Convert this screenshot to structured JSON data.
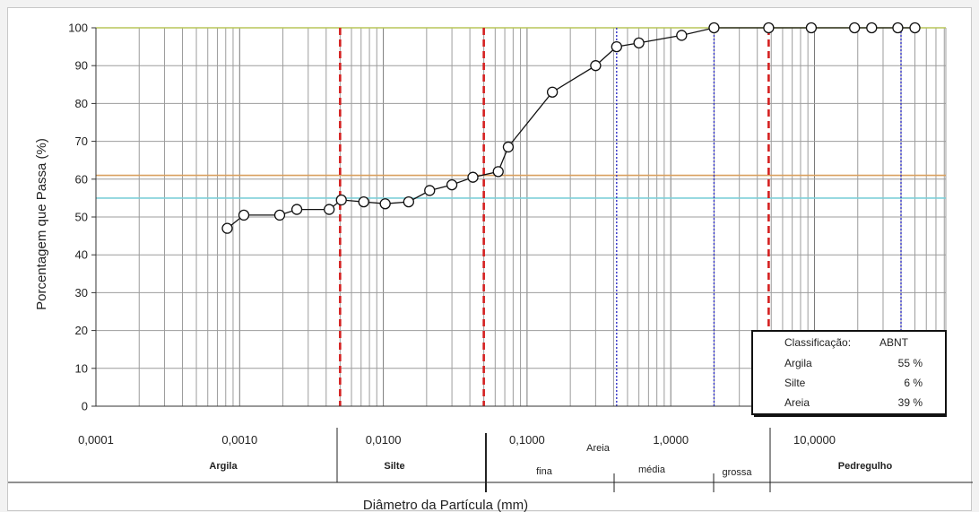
{
  "chart_data": {
    "type": "scatter",
    "x_scale": "log",
    "xlim": [
      0.0001,
      50
    ],
    "ylim": [
      0,
      100
    ],
    "xlabel": "Diâmetro da Partícula (mm)",
    "ylabel": "Porcentagem que Passa (%)",
    "y_ticks": [
      0,
      10,
      20,
      30,
      40,
      50,
      60,
      70,
      80,
      90,
      100
    ],
    "x_ticks": [
      {
        "value": 0.0001,
        "label": "0,0001"
      },
      {
        "value": 0.001,
        "label": "0,0010"
      },
      {
        "value": 0.01,
        "label": "0,0100"
      },
      {
        "value": 0.1,
        "label": "0,1000"
      },
      {
        "value": 1,
        "label": "1,0000"
      },
      {
        "value": 10,
        "label": "10,0000"
      }
    ],
    "grid": true,
    "series": [
      {
        "x": [
          0.00082,
          0.00107,
          0.0019,
          0.0025,
          0.0042,
          0.0051,
          0.0073,
          0.0103,
          0.015,
          0.021,
          0.03,
          0.042,
          0.063,
          0.074,
          0.15,
          0.3,
          0.42,
          0.6,
          1.19,
          2.0,
          4.8,
          9.5,
          19,
          25,
          38,
          50
        ],
        "y": [
          47,
          50.5,
          50.5,
          52,
          52,
          54.5,
          54,
          53.5,
          54,
          57,
          58.5,
          60.5,
          62,
          68.5,
          83,
          90,
          95,
          96,
          98,
          100,
          100,
          100,
          100,
          100,
          100,
          100
        ]
      }
    ],
    "reference_lines": {
      "horizontal": [
        {
          "y": 100,
          "color": "#b8c65a"
        },
        {
          "y": 61,
          "color": "#d9a060"
        },
        {
          "y": 55,
          "color": "#7dcfd8"
        }
      ],
      "vertical_red_dashed": [
        0.005,
        0.05,
        4.8
      ],
      "vertical_blue_dotted": [
        0.42,
        2.0,
        40
      ],
      "colors": {
        "red": "#d42020",
        "blue": "#3030c8"
      }
    },
    "legend": {
      "position": "bottom-right",
      "header_label": "Classificação:",
      "header_value": "ABNT",
      "rows": [
        {
          "label": "Argila",
          "value": "55 %"
        },
        {
          "label": "Silte",
          "value": "6 %"
        },
        {
          "label": "Areia",
          "value": "39 %"
        }
      ]
    },
    "zones": {
      "argila": "Argila",
      "silte": "Silte",
      "areia": "Areia",
      "fina": "fina",
      "media": "média",
      "grossa": "grossa",
      "pedregulho": "Pedregulho"
    }
  }
}
